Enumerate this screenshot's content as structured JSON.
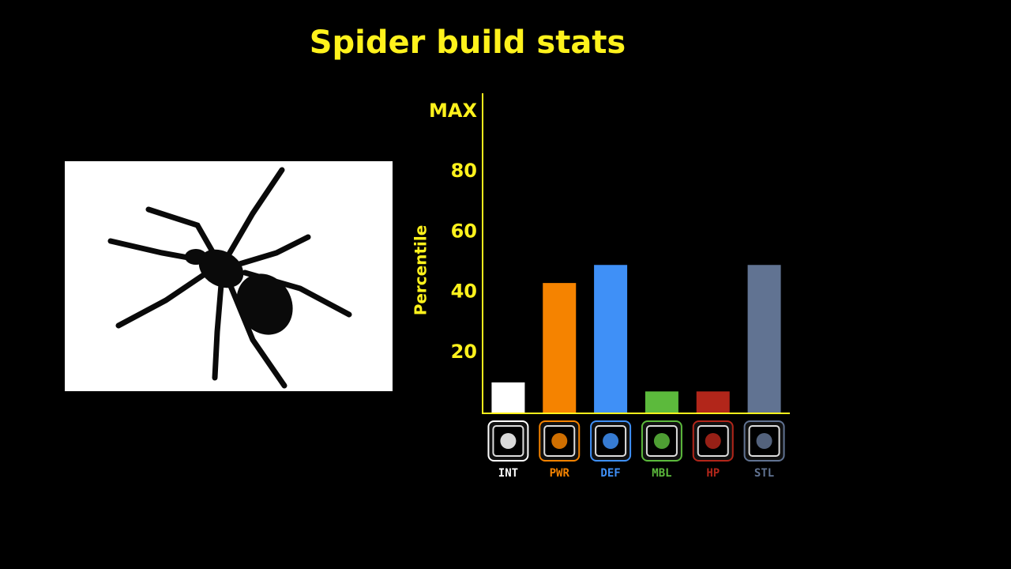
{
  "chart_data": {
    "type": "bar",
    "title": "Spider build stats",
    "y_label": "Percentile",
    "categories": [
      "INT",
      "PWR",
      "DEF",
      "MBL",
      "HP",
      "STL"
    ],
    "values": [
      10,
      43,
      49,
      7,
      7,
      49
    ],
    "colors": [
      "#ffffff",
      "#f58300",
      "#3f90f7",
      "#5cba3c",
      "#b2261a",
      "#617392"
    ],
    "ylim": [
      0,
      106
    ],
    "yticks": [
      20,
      40,
      60,
      80,
      {
        "value": 100,
        "label": "MAX"
      }
    ],
    "grid": false
  }
}
